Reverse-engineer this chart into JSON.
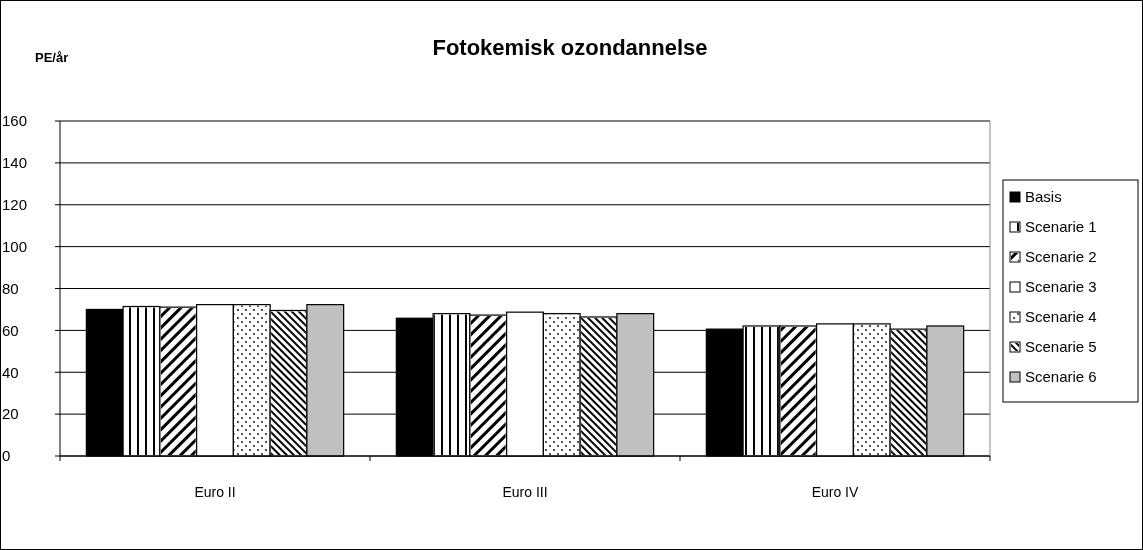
{
  "chart_data": {
    "type": "bar",
    "title": "Fotokemisk ozondannelse",
    "ylabel": "PE/år",
    "categories": [
      "Euro II",
      "Euro III",
      "Euro IV"
    ],
    "series": [
      {
        "name": "Basis",
        "color": "#000000",
        "values": [
          70,
          65.8,
          60.6
        ]
      },
      {
        "name": "Scenarie 1",
        "color": "#ffffff",
        "values": [
          71.4,
          68,
          62.1
        ]
      },
      {
        "name": "Scenarie 2",
        "color": "#ffffff",
        "values": [
          71.1,
          67.3,
          62.1
        ]
      },
      {
        "name": "Scenarie 3",
        "color": "#ffffff",
        "values": [
          72.3,
          68.7,
          63.1
        ]
      },
      {
        "name": "Scenarie 4",
        "color": "#ffffff",
        "values": [
          72.3,
          68,
          63.1
        ]
      },
      {
        "name": "Scenarie 5",
        "color": "#ffffff",
        "values": [
          69.5,
          66.4,
          60.6
        ]
      },
      {
        "name": "Scenarie 6",
        "color": "#c0c0c0",
        "values": [
          72.3,
          68,
          62.1
        ]
      }
    ],
    "ylim": [
      0,
      160
    ],
    "yticks": [
      0,
      20,
      40,
      60,
      80,
      100,
      120,
      140,
      160
    ],
    "grid": "y",
    "legend": "right"
  }
}
